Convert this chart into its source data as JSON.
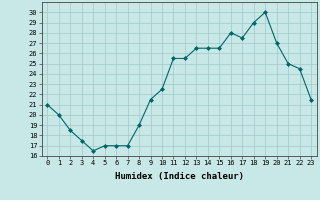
{
  "x": [
    0,
    1,
    2,
    3,
    4,
    5,
    6,
    7,
    8,
    9,
    10,
    11,
    12,
    13,
    14,
    15,
    16,
    17,
    18,
    19,
    20,
    21,
    22,
    23
  ],
  "y": [
    21,
    20,
    18.5,
    17.5,
    16.5,
    17,
    17,
    17,
    19,
    21.5,
    22.5,
    25.5,
    25.5,
    26.5,
    26.5,
    26.5,
    28,
    27.5,
    29,
    30,
    27,
    25,
    24.5,
    21.5
  ],
  "line_color": "#006666",
  "marker": "D",
  "marker_size": 2.0,
  "bg_color": "#c8e8e8",
  "grid_color": "#a0c8c8",
  "xlabel": "Humidex (Indice chaleur)",
  "xlim": [
    -0.5,
    23.5
  ],
  "ylim": [
    16,
    31
  ],
  "yticks": [
    16,
    17,
    18,
    19,
    20,
    21,
    22,
    23,
    24,
    25,
    26,
    27,
    28,
    29,
    30
  ],
  "xticks": [
    0,
    1,
    2,
    3,
    4,
    5,
    6,
    7,
    8,
    9,
    10,
    11,
    12,
    13,
    14,
    15,
    16,
    17,
    18,
    19,
    20,
    21,
    22,
    23
  ],
  "tick_fontsize": 5.0,
  "xlabel_fontsize": 6.5
}
